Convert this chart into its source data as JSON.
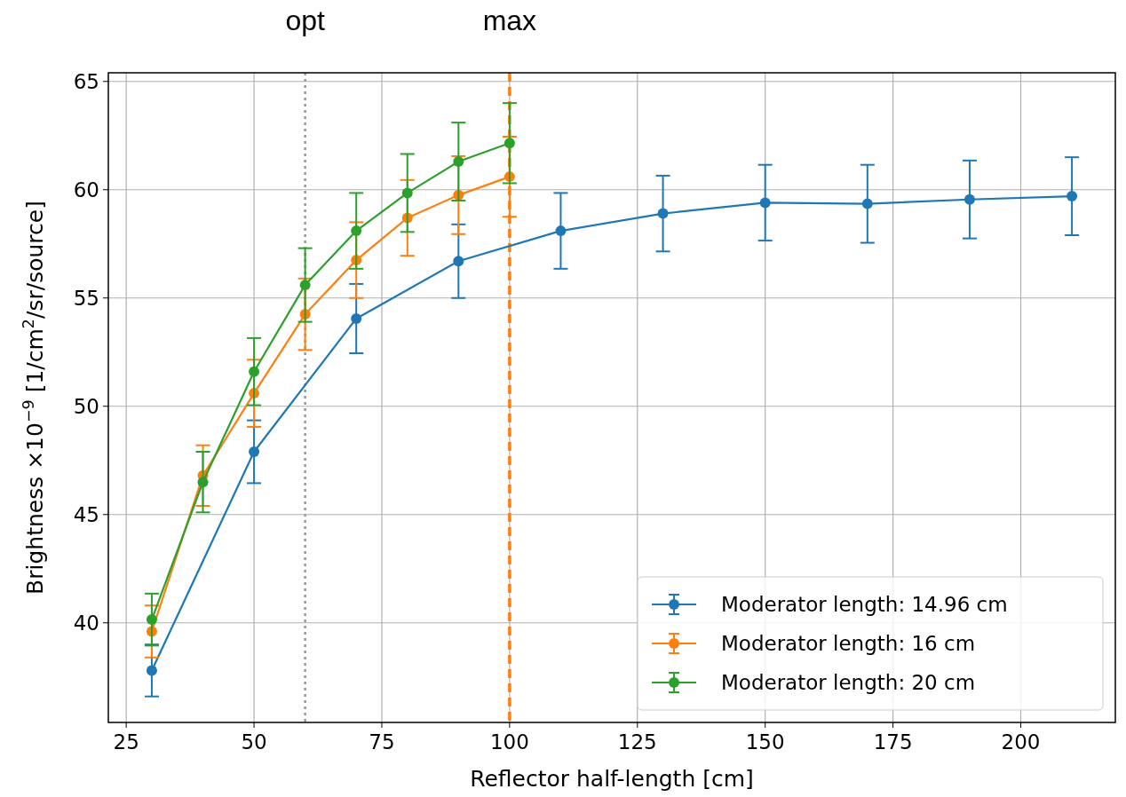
{
  "chart_data": {
    "type": "line",
    "xlabel": "Reflector half-length [cm]",
    "ylabel": "Brightness ×10$^{−9}$ [1/cm$^{2}$/sr/source]",
    "xlim": [
      21.5,
      218.5
    ],
    "xticks": [
      25,
      50,
      75,
      100,
      125,
      150,
      175,
      200
    ],
    "ylim": [
      35.4,
      65.4
    ],
    "yticks": [
      40,
      45,
      50,
      55,
      60,
      65
    ],
    "grid": true,
    "legend": "bottom right",
    "marker": "circle",
    "line_style": "solid",
    "series": [
      {
        "name": "Moderator length: 14.96 cm",
        "color": "#1f77b4",
        "x": [
          30,
          50,
          70,
          90,
          110,
          130,
          150,
          170,
          190,
          210
        ],
        "values": [
          37.8,
          47.9,
          54.05,
          56.7,
          58.1,
          58.9,
          59.4,
          59.35,
          59.55,
          59.7
        ],
        "errors": [
          1.2,
          1.45,
          1.6,
          1.7,
          1.75,
          1.75,
          1.75,
          1.8,
          1.8,
          1.8
        ]
      },
      {
        "name": "Moderator length: 16 cm",
        "color": "#ff7f0e",
        "x": [
          30,
          40,
          50,
          60,
          70,
          80,
          90,
          100
        ],
        "values": [
          39.6,
          46.8,
          50.6,
          54.25,
          56.75,
          58.7,
          59.75,
          60.6
        ],
        "errors": [
          1.2,
          1.4,
          1.55,
          1.65,
          1.75,
          1.75,
          1.8,
          1.85
        ]
      },
      {
        "name": "Moderator length: 20 cm",
        "color": "#2ca02c",
        "x": [
          30,
          40,
          50,
          60,
          70,
          80,
          90,
          100
        ],
        "values": [
          40.15,
          46.5,
          51.6,
          55.6,
          58.1,
          59.85,
          61.3,
          62.15
        ],
        "errors": [
          1.2,
          1.4,
          1.55,
          1.7,
          1.75,
          1.8,
          1.8,
          1.85
        ]
      }
    ],
    "ref_lines": [
      {
        "axis": "x",
        "value": 60,
        "label": "opt",
        "color": "#999999",
        "line_style": "dotted"
      },
      {
        "axis": "x",
        "value": 100,
        "label": "max",
        "color": "#ff7f0e",
        "line_style": "dashed"
      }
    ]
  }
}
